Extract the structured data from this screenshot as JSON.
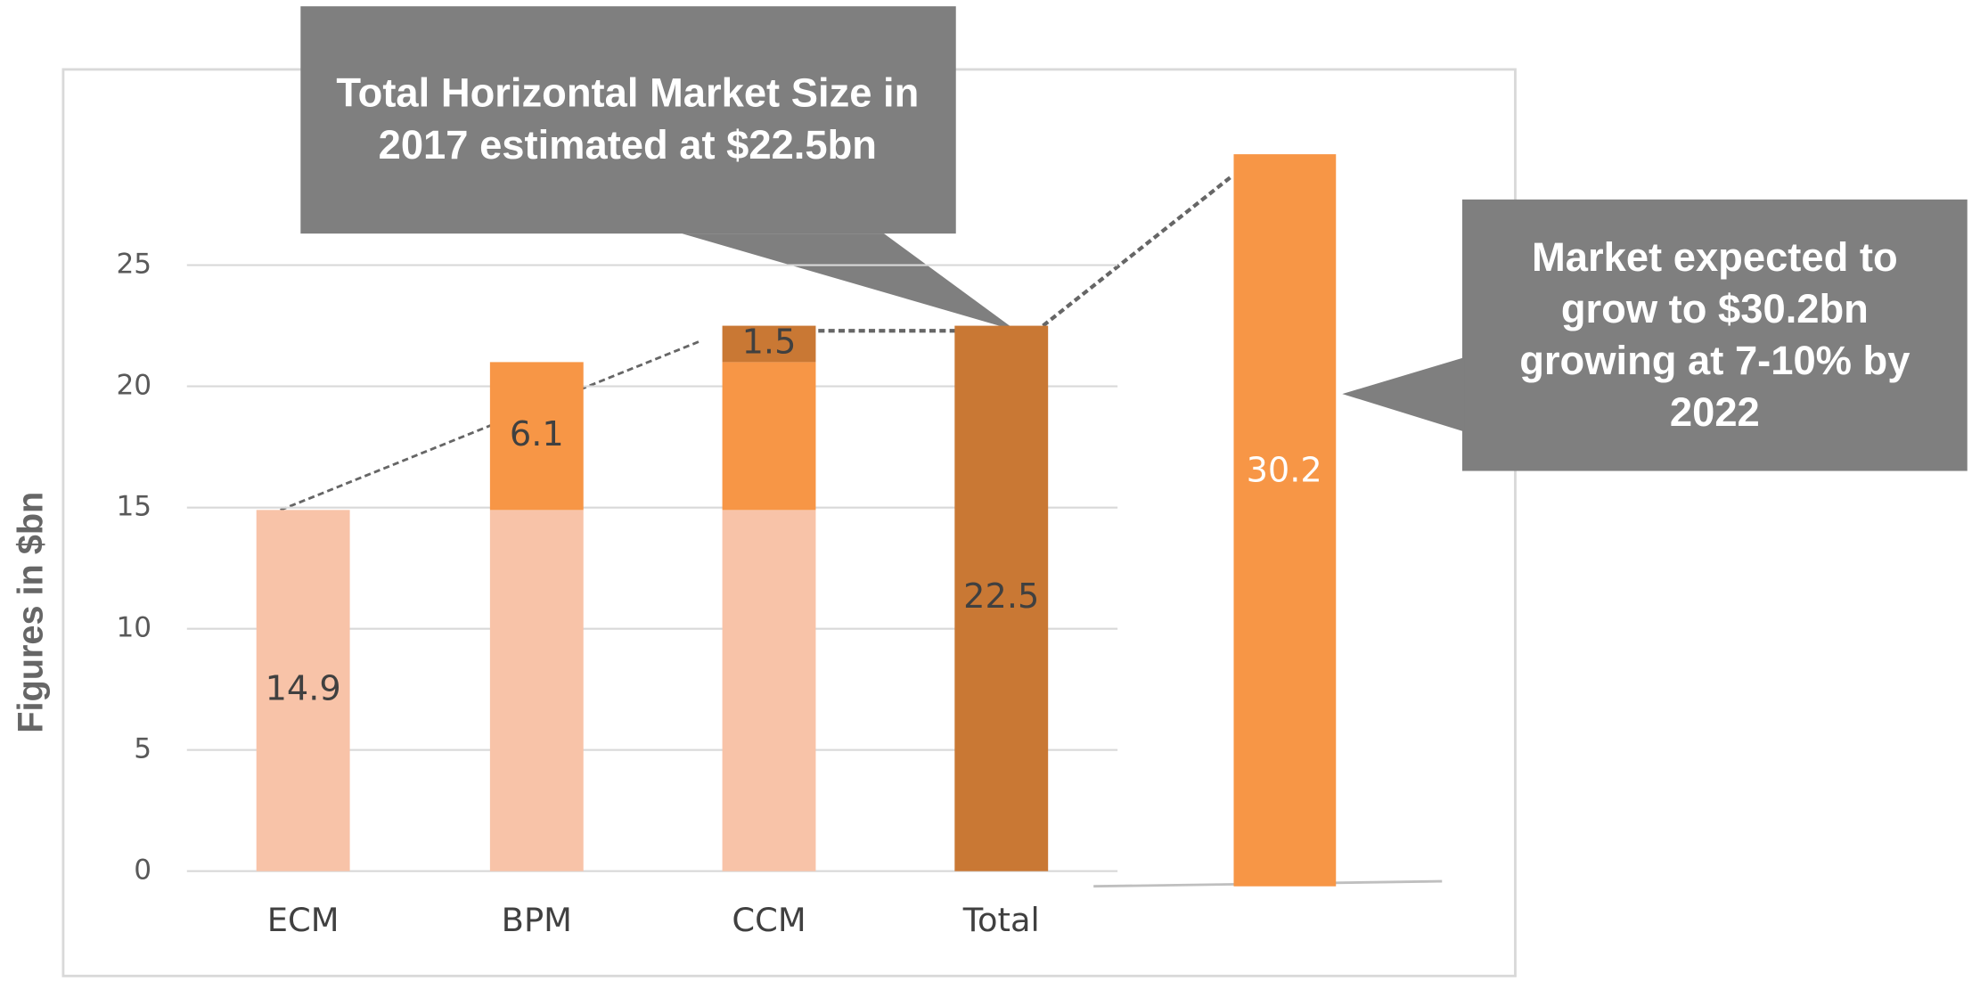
{
  "chart_data": {
    "type": "waterfall",
    "y_label": "Figures in $bn",
    "categories": [
      "ECM",
      "BPM",
      "CCM",
      "Total"
    ],
    "series": [
      {
        "color": "#f8c3a8",
        "values": [
          14.9,
          14.9,
          14.9,
          null
        ],
        "value_labels": [
          "14.9",
          null,
          null,
          null
        ]
      },
      {
        "color": "#f79646",
        "values": [
          null,
          6.1,
          6.1,
          null
        ],
        "value_labels": [
          null,
          "6.1",
          null,
          null
        ]
      },
      {
        "color": "#c97834",
        "values": [
          null,
          null,
          1.5,
          22.5
        ],
        "value_labels": [
          null,
          null,
          "1.5",
          "22.5"
        ]
      }
    ],
    "forecast": {
      "value": 30.2,
      "color": "#f79646"
    },
    "ylim": [
      0,
      25
    ],
    "yticks": [
      0,
      5,
      10,
      15,
      20,
      25
    ],
    "grid": true,
    "annotations": [
      {
        "lines": [
          "Total Horizontal Market Size in",
          "2017 estimated at $22.5bn"
        ]
      },
      {
        "lines": [
          "Market expected to",
          "grow to $30.2bn",
          "growing at 7-10% by",
          "2022"
        ]
      }
    ]
  }
}
